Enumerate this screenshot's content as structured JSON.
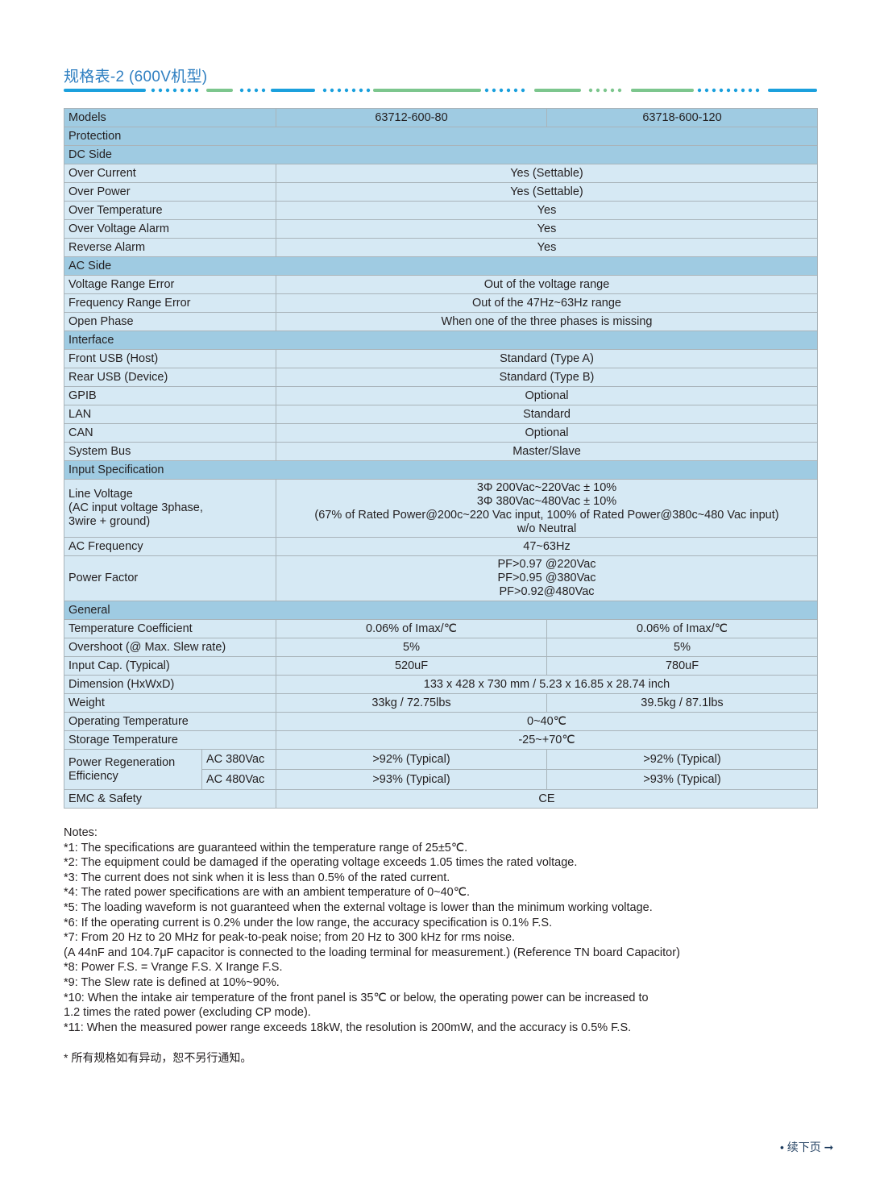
{
  "title": "规格表-2 (600V机型)",
  "colors": {
    "title": "#2f7fc1",
    "deco_blue": "#1ba0dd",
    "deco_green": "#7cc68d",
    "section_bg": "#9fcbe2",
    "row_bg": "#d6e9f4"
  },
  "table": {
    "header": {
      "label": "Models",
      "models": [
        "63712-600-80",
        "63718-600-120"
      ]
    },
    "rows": [
      {
        "type": "section",
        "label": "Protection"
      },
      {
        "type": "section",
        "label": "DC Side"
      },
      {
        "type": "span",
        "label": "Over Current",
        "value": "Yes (Settable)"
      },
      {
        "type": "span",
        "label": "Over Power",
        "value": "Yes (Settable)"
      },
      {
        "type": "span",
        "label": "Over Temperature",
        "value": "Yes"
      },
      {
        "type": "span",
        "label": "Over Voltage Alarm",
        "value": "Yes"
      },
      {
        "type": "span",
        "label": "Reverse Alarm",
        "value": "Yes"
      },
      {
        "type": "section",
        "label": "AC Side"
      },
      {
        "type": "span",
        "label": "Voltage Range Error",
        "value": "Out of the voltage range"
      },
      {
        "type": "span",
        "label": "Frequency Range Error",
        "value": "Out of the 47Hz~63Hz range"
      },
      {
        "type": "span",
        "label": "Open Phase",
        "value": "When one of the three phases is missing"
      },
      {
        "type": "section",
        "label": "Interface"
      },
      {
        "type": "span",
        "label": "Front USB (Host)",
        "value": "Standard (Type A)"
      },
      {
        "type": "span",
        "label": "Rear USB (Device)",
        "value": "Standard (Type B)"
      },
      {
        "type": "span",
        "label": "GPIB",
        "value": "Optional"
      },
      {
        "type": "span",
        "label": "LAN",
        "value": "Standard"
      },
      {
        "type": "span",
        "label": "CAN",
        "value": "Optional"
      },
      {
        "type": "span",
        "label": "System Bus",
        "value": "Master/Slave"
      },
      {
        "type": "section",
        "label": "Input Specification"
      },
      {
        "type": "span",
        "label": [
          "Line Voltage",
          "(AC input voltage 3phase,",
          "3wire + ground)"
        ],
        "value": [
          "3Φ 200Vac~220Vac ± 10%",
          "3Φ 380Vac~480Vac ± 10%",
          "(67% of Rated Power@200c~220 Vac input, 100% of Rated Power@380c~480 Vac input)",
          "w/o Neutral"
        ]
      },
      {
        "type": "span",
        "label": "AC Frequency",
        "value": "47~63Hz"
      },
      {
        "type": "span",
        "label": "Power Factor",
        "value": [
          "PF>0.97 @220Vac",
          "PF>0.95 @380Vac",
          "PF>0.92@480Vac"
        ]
      },
      {
        "type": "section",
        "label": "General"
      },
      {
        "type": "two",
        "label": "Temperature Coefficient",
        "values": [
          "0.06% of Imax/℃",
          "0.06% of Imax/℃"
        ]
      },
      {
        "type": "two",
        "label": "Overshoot (@ Max. Slew rate)",
        "values": [
          "5%",
          "5%"
        ]
      },
      {
        "type": "two",
        "label": "Input Cap. (Typical)",
        "values": [
          "520uF",
          "780uF"
        ]
      },
      {
        "type": "span",
        "label": "Dimension (HxWxD)",
        "value": "133 x 428 x 730 mm / 5.23 x 16.85 x 28.74 inch"
      },
      {
        "type": "two",
        "label": "Weight",
        "values": [
          "33kg / 72.75lbs",
          "39.5kg / 87.1lbs"
        ]
      },
      {
        "type": "span",
        "label": "Operating Temperature",
        "value": "0~40℃"
      },
      {
        "type": "span",
        "label": "Storage Temperature",
        "value": "-25~+70℃"
      },
      {
        "type": "regen",
        "label": [
          "Power Regeneration",
          "Efficiency"
        ],
        "sub": [
          {
            "label": "AC 380Vac",
            "values": [
              ">92% (Typical)",
              ">92% (Typical)"
            ]
          },
          {
            "label": "AC 480Vac",
            "values": [
              ">93% (Typical)",
              ">93% (Typical)"
            ]
          }
        ]
      },
      {
        "type": "span",
        "label": "EMC & Safety",
        "value": "CE"
      }
    ]
  },
  "notes": [
    "Notes:",
    "*1: The specifications are guaranteed within the temperature range of 25±5℃.",
    "*2: The equipment could be damaged if the operating voltage exceeds 1.05 times the rated voltage.",
    "*3: The current does not sink when it is less than 0.5% of the rated current.",
    "*4: The rated power specifications are with an ambient temperature of 0~40℃.",
    "*5: The loading waveform is not guaranteed when the external voltage is lower than the minimum working voltage.",
    "*6: If the operating current is 0.2% under the low range, the accuracy specification is 0.1% F.S.",
    "*7: From 20 Hz to 20 MHz for peak-to-peak noise; from 20 Hz to 300 kHz for rms noise.",
    "(A 44nF and 104.7μF capacitor is connected to the loading terminal for measurement.) (Reference TN board Capacitor)",
    "*8: Power F.S. = Vrange F.S. X Irange F.S.",
    "*9: The Slew rate is defined at 10%~90%.",
    "*10: When the intake air temperature of the front panel is 35℃ or below, the operating power can be increased to",
    "1.2 times the rated power (excluding CP mode).",
    "*11: When the measured power range exceeds 18kW, the resolution is 200mW, and the accuracy is 0.5% F.S."
  ],
  "disclaimer": "* 所有规格如有异动，恕不另行通知。",
  "continue_label": "• 续下页 ➞"
}
